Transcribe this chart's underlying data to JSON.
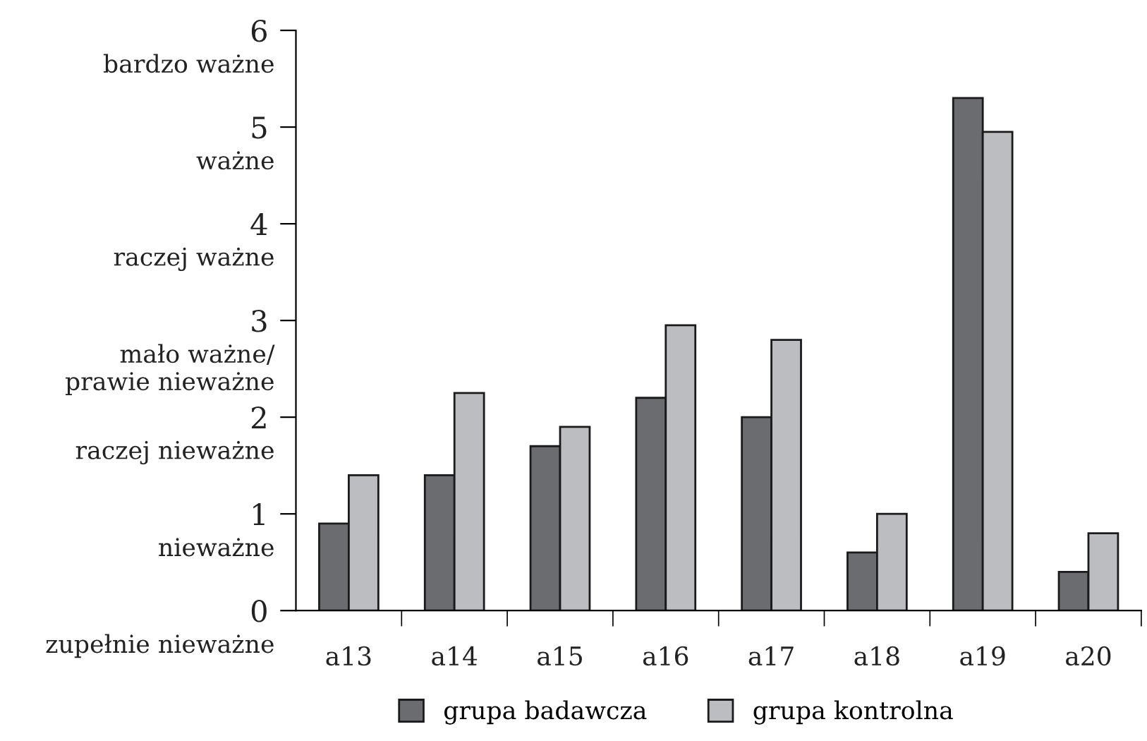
{
  "chart_data": {
    "type": "bar",
    "categories": [
      "a13",
      "a14",
      "a15",
      "a16",
      "a17",
      "a18",
      "a19",
      "a20"
    ],
    "series": [
      {
        "name": "grupa badawcza",
        "color": "#6b6c70",
        "values": [
          0.9,
          1.4,
          1.7,
          2.2,
          2.0,
          0.6,
          5.3,
          0.4
        ]
      },
      {
        "name": "grupa kontrolna",
        "color": "#bcbdc1",
        "values": [
          1.4,
          2.25,
          1.9,
          2.95,
          2.8,
          1.0,
          4.95,
          0.8
        ]
      }
    ],
    "ylim": [
      0,
      6
    ],
    "yticks": [
      0,
      1,
      2,
      3,
      4,
      5,
      6
    ],
    "annotations": [
      "bardzo ważne",
      "ważne",
      "raczej ważne",
      "mało ważne/\nprawie nieważne",
      "raczej nieważne",
      "nieważne",
      "zupełnie nieważne"
    ],
    "grid": false,
    "legend": "bottom"
  }
}
